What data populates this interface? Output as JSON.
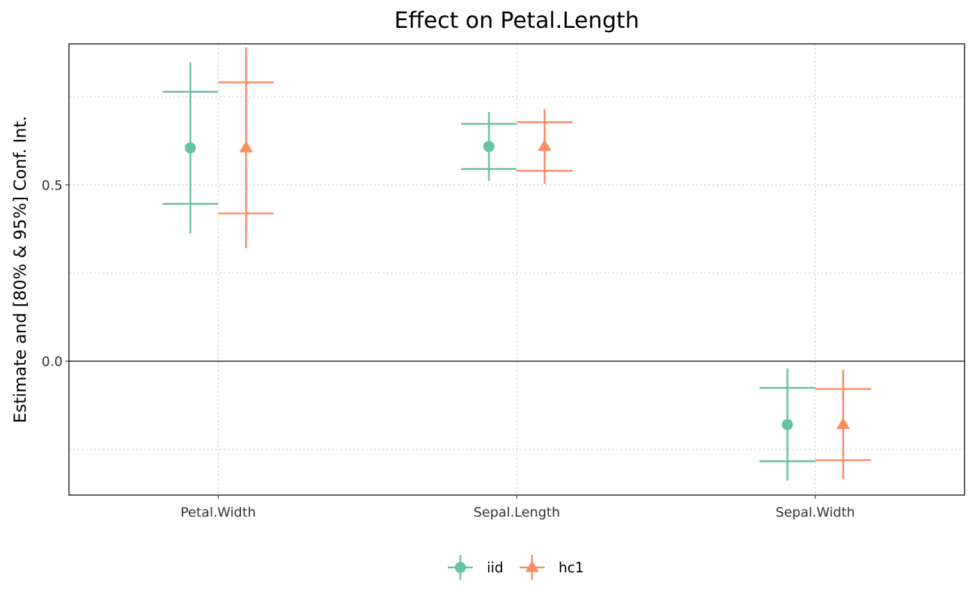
{
  "chart_data": {
    "type": "errorbar",
    "title": "Effect on Petal.Length",
    "xlabel": "",
    "ylabel": "Estimate and [80% & 95%] Conf. Int.",
    "categories": [
      "Petal.Width",
      "Sepal.Length",
      "Sepal.Width"
    ],
    "ylim": [
      -0.38,
      0.9
    ],
    "yticks": [
      0.0,
      0.5
    ],
    "yticklabels": [
      "0.0",
      "0.5"
    ],
    "reference_line": 0,
    "grid": true,
    "legend_position": "bottom",
    "series": [
      {
        "name": "iid",
        "color": "#66c2a5",
        "marker": "circle",
        "estimate": [
          0.605,
          0.609,
          -0.18
        ],
        "ci80_low": [
          0.446,
          0.545,
          -0.284
        ],
        "ci80_high": [
          0.764,
          0.673,
          -0.076
        ],
        "ci95_low": [
          0.362,
          0.511,
          -0.339
        ],
        "ci95_high": [
          0.848,
          0.707,
          -0.021
        ]
      },
      {
        "name": "hc1",
        "color": "#fc8d62",
        "marker": "triangle",
        "estimate": [
          0.605,
          0.609,
          -0.18
        ],
        "ci80_low": [
          0.419,
          0.54,
          -0.281
        ],
        "ci80_high": [
          0.791,
          0.678,
          -0.079
        ],
        "ci95_low": [
          0.32,
          0.503,
          -0.335
        ],
        "ci95_high": [
          0.89,
          0.715,
          -0.025
        ]
      }
    ]
  }
}
